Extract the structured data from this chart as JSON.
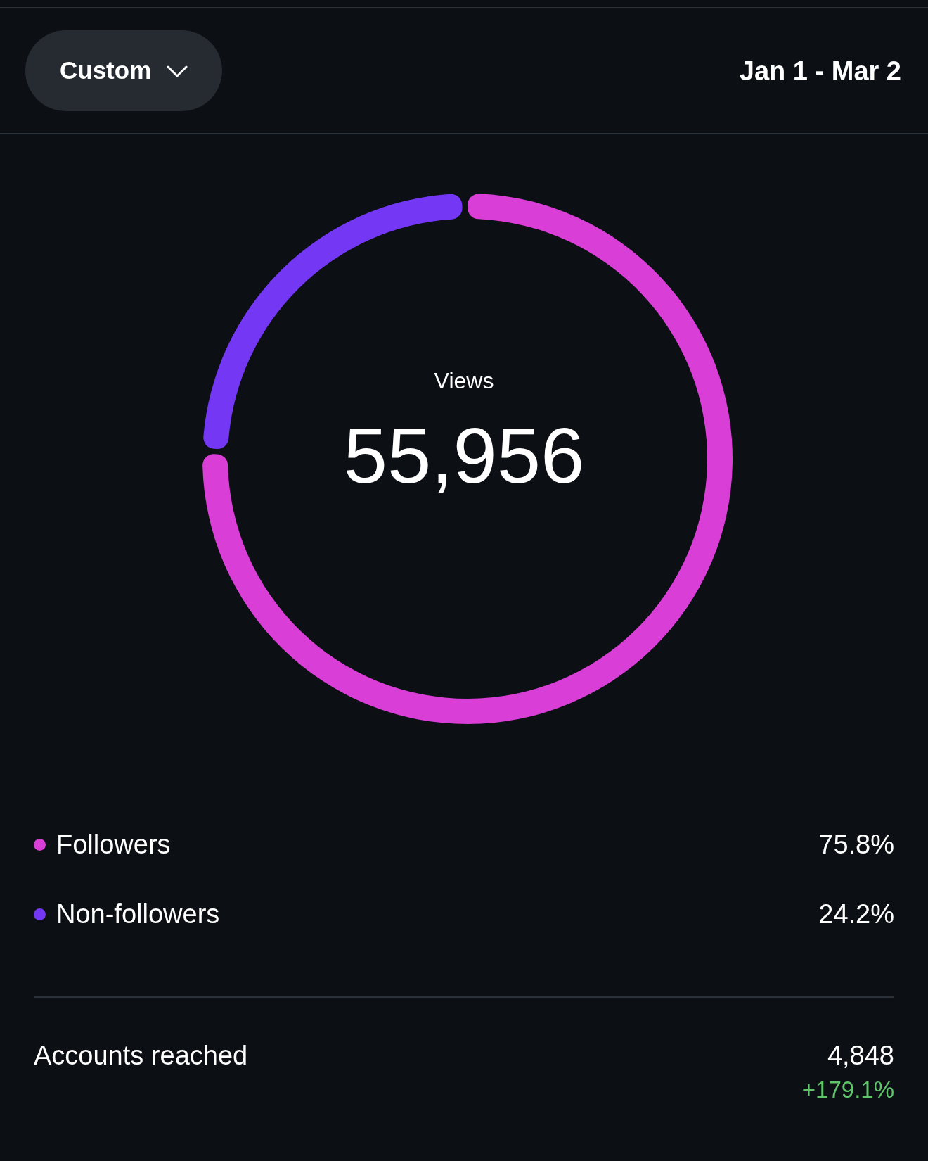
{
  "chart_data": {
    "type": "donut",
    "categories": [
      "Followers",
      "Non-followers"
    ],
    "values": [
      75.8,
      24.2
    ],
    "colors": [
      "#d93fd6",
      "#7438f5"
    ],
    "value_labels": [
      "75.8%",
      "24.2%"
    ],
    "legend": "bottom",
    "title": "Views",
    "subtitle": "55,956",
    "annotations": [
      "Custom",
      "Jan 1 - Mar 2",
      "Accounts reached",
      "4,848",
      "+179.1%"
    ]
  }
}
